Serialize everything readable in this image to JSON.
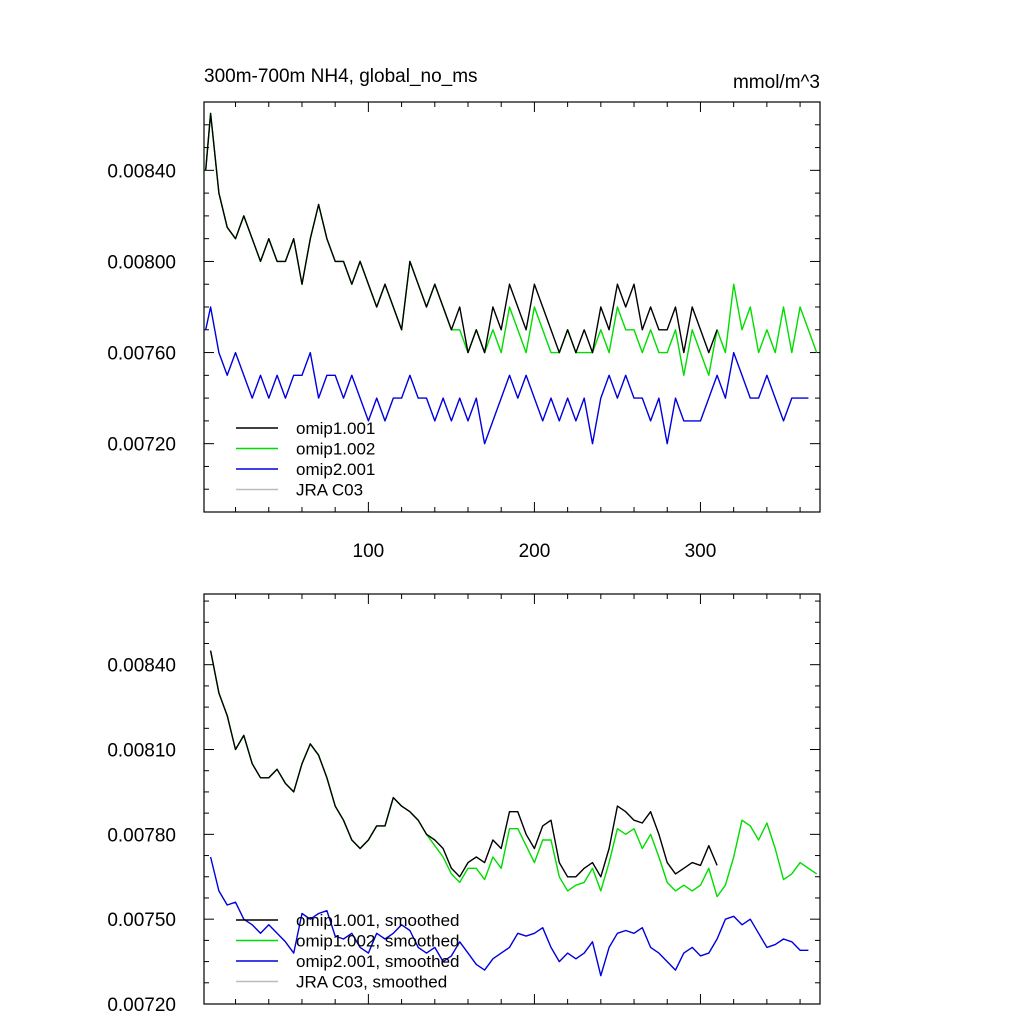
{
  "chart_data": [
    {
      "type": "line",
      "title": "300m-700m NH4, global_no_ms",
      "units": "mmol/m^3",
      "xlim": [
        1,
        372
      ],
      "ylim": [
        0.0069,
        0.0087
      ],
      "xticks": [
        100,
        200,
        300
      ],
      "xtick_labels": [
        "100",
        "200",
        "300"
      ],
      "yticks": [
        0.0072,
        0.0076,
        0.008,
        0.0084
      ],
      "ytick_labels": [
        "0.00720",
        "0.00760",
        "0.00800",
        "0.00840"
      ],
      "legend_position": "bottom-left",
      "colors": [
        "#000000",
        "#00dd00",
        "#0000dd",
        "#bbbbbb"
      ],
      "series": [
        {
          "name": "omip1.001",
          "color": "#000000",
          "x": [
            2,
            5,
            10,
            15,
            20,
            25,
            30,
            35,
            40,
            45,
            50,
            55,
            60,
            65,
            70,
            75,
            80,
            85,
            90,
            95,
            100,
            105,
            110,
            115,
            120,
            125,
            130,
            135,
            140,
            145,
            150,
            155,
            160,
            165,
            170,
            175,
            180,
            185,
            190,
            195,
            200,
            205,
            210,
            215,
            220,
            225,
            230,
            235,
            240,
            245,
            250,
            255,
            260,
            265,
            270,
            275,
            280,
            285,
            290,
            295,
            300,
            305,
            310
          ],
          "y": [
            0.0084,
            0.00865,
            0.0083,
            0.00815,
            0.0081,
            0.0082,
            0.0081,
            0.008,
            0.0081,
            0.008,
            0.008,
            0.0081,
            0.0079,
            0.0081,
            0.00825,
            0.0081,
            0.008,
            0.008,
            0.0079,
            0.008,
            0.0079,
            0.0078,
            0.0079,
            0.0078,
            0.0077,
            0.008,
            0.0079,
            0.0078,
            0.0079,
            0.0078,
            0.0077,
            0.0078,
            0.0076,
            0.0077,
            0.0076,
            0.0078,
            0.0077,
            0.0079,
            0.0078,
            0.0077,
            0.0079,
            0.0078,
            0.0077,
            0.0076,
            0.0077,
            0.0076,
            0.0077,
            0.0076,
            0.0078,
            0.0077,
            0.0079,
            0.0078,
            0.0079,
            0.0077,
            0.0078,
            0.0077,
            0.0077,
            0.0078,
            0.0076,
            0.0078,
            0.0077,
            0.0076,
            0.0077
          ]
        },
        {
          "name": "omip1.002",
          "color": "#00dd00",
          "x": [
            2,
            5,
            10,
            15,
            20,
            25,
            30,
            35,
            40,
            45,
            50,
            55,
            60,
            65,
            70,
            75,
            80,
            85,
            90,
            95,
            100,
            105,
            110,
            115,
            120,
            125,
            130,
            135,
            140,
            145,
            150,
            155,
            160,
            165,
            170,
            175,
            180,
            185,
            190,
            195,
            200,
            205,
            210,
            215,
            220,
            225,
            230,
            235,
            240,
            245,
            250,
            255,
            260,
            265,
            270,
            275,
            280,
            285,
            290,
            295,
            300,
            305,
            310,
            315,
            320,
            325,
            330,
            335,
            340,
            345,
            350,
            355,
            360,
            365,
            370
          ],
          "y": [
            0.0084,
            0.00865,
            0.0083,
            0.00815,
            0.0081,
            0.0082,
            0.0081,
            0.008,
            0.0081,
            0.008,
            0.008,
            0.0081,
            0.0079,
            0.0081,
            0.00825,
            0.0081,
            0.008,
            0.008,
            0.0079,
            0.008,
            0.0079,
            0.0078,
            0.0079,
            0.0078,
            0.0077,
            0.008,
            0.0079,
            0.0078,
            0.0079,
            0.0078,
            0.0077,
            0.0077,
            0.0076,
            0.0077,
            0.0076,
            0.0077,
            0.0076,
            0.0078,
            0.0077,
            0.0076,
            0.0078,
            0.0077,
            0.0076,
            0.0076,
            0.0077,
            0.0076,
            0.0076,
            0.0076,
            0.0077,
            0.0076,
            0.0078,
            0.0077,
            0.0077,
            0.0076,
            0.0077,
            0.0076,
            0.0076,
            0.0077,
            0.0075,
            0.0077,
            0.0076,
            0.0075,
            0.0077,
            0.0076,
            0.0079,
            0.0077,
            0.0078,
            0.0076,
            0.0077,
            0.0076,
            0.0078,
            0.0076,
            0.0078,
            0.0077,
            0.0076
          ]
        },
        {
          "name": "omip2.001",
          "color": "#0000dd",
          "x": [
            2,
            5,
            10,
            15,
            20,
            25,
            30,
            35,
            40,
            45,
            50,
            55,
            60,
            65,
            70,
            75,
            80,
            85,
            90,
            95,
            100,
            105,
            110,
            115,
            120,
            125,
            130,
            135,
            140,
            145,
            150,
            155,
            160,
            165,
            170,
            175,
            180,
            185,
            190,
            195,
            200,
            205,
            210,
            215,
            220,
            225,
            230,
            235,
            240,
            245,
            250,
            255,
            260,
            265,
            270,
            275,
            280,
            285,
            290,
            295,
            300,
            305,
            310,
            315,
            320,
            325,
            330,
            335,
            340,
            345,
            350,
            355,
            360,
            365
          ],
          "y": [
            0.0077,
            0.0078,
            0.0076,
            0.0075,
            0.0076,
            0.0075,
            0.0074,
            0.0075,
            0.0074,
            0.0075,
            0.0074,
            0.0075,
            0.0075,
            0.0076,
            0.0074,
            0.0075,
            0.0075,
            0.0074,
            0.0075,
            0.0074,
            0.0073,
            0.0074,
            0.0073,
            0.0074,
            0.0074,
            0.0075,
            0.0074,
            0.0074,
            0.0073,
            0.0074,
            0.0073,
            0.0074,
            0.0073,
            0.0074,
            0.0072,
            0.0073,
            0.0074,
            0.0075,
            0.0074,
            0.0075,
            0.0074,
            0.0073,
            0.0074,
            0.0073,
            0.0074,
            0.0073,
            0.0074,
            0.0072,
            0.0074,
            0.0075,
            0.0074,
            0.0075,
            0.0074,
            0.0074,
            0.0073,
            0.0074,
            0.0072,
            0.0074,
            0.0073,
            0.0073,
            0.0073,
            0.0074,
            0.0075,
            0.0074,
            0.0076,
            0.0075,
            0.0074,
            0.0074,
            0.0075,
            0.0074,
            0.0073,
            0.0074,
            0.0074,
            0.0074
          ]
        },
        {
          "name": "JRA C03",
          "color": "#bbbbbb",
          "x": [],
          "y": []
        }
      ]
    },
    {
      "type": "line",
      "title": "",
      "xlim": [
        1,
        372
      ],
      "ylim": [
        0.0072,
        0.00865
      ],
      "xticks": [
        100,
        200,
        300
      ],
      "xtick_labels": [
        "",
        "",
        ""
      ],
      "yticks": [
        0.0072,
        0.0075,
        0.0078,
        0.0081,
        0.0084
      ],
      "ytick_labels": [
        "0.00720",
        "0.00750",
        "0.00780",
        "0.00810",
        "0.00840"
      ],
      "legend_position": "bottom-left",
      "colors": [
        "#000000",
        "#00dd00",
        "#0000dd",
        "#bbbbbb"
      ],
      "series": [
        {
          "name": "omip1.001, smoothed",
          "color": "#000000",
          "x": [
            5,
            10,
            15,
            20,
            25,
            30,
            35,
            40,
            45,
            50,
            55,
            60,
            65,
            70,
            75,
            80,
            85,
            90,
            95,
            100,
            105,
            110,
            115,
            120,
            125,
            130,
            135,
            140,
            145,
            150,
            155,
            160,
            165,
            170,
            175,
            180,
            185,
            190,
            195,
            200,
            205,
            210,
            215,
            220,
            225,
            230,
            235,
            240,
            245,
            250,
            255,
            260,
            265,
            270,
            275,
            280,
            285,
            290,
            295,
            300,
            305,
            310
          ],
          "y": [
            0.00845,
            0.0083,
            0.00822,
            0.0081,
            0.00815,
            0.00805,
            0.008,
            0.008,
            0.00803,
            0.00798,
            0.00795,
            0.00805,
            0.00812,
            0.00808,
            0.008,
            0.0079,
            0.00785,
            0.00778,
            0.00775,
            0.00778,
            0.00783,
            0.00783,
            0.00793,
            0.0079,
            0.00788,
            0.00785,
            0.0078,
            0.00778,
            0.00775,
            0.00768,
            0.00765,
            0.0077,
            0.00772,
            0.0077,
            0.00778,
            0.00775,
            0.00788,
            0.00788,
            0.0078,
            0.00775,
            0.00783,
            0.00785,
            0.0077,
            0.00765,
            0.00765,
            0.00768,
            0.0077,
            0.00765,
            0.00775,
            0.0079,
            0.00788,
            0.00785,
            0.00784,
            0.00788,
            0.0078,
            0.0077,
            0.00766,
            0.00768,
            0.0077,
            0.00769,
            0.00776,
            0.00769
          ]
        },
        {
          "name": "omip1.002, smoothed",
          "color": "#00dd00",
          "x": [
            5,
            10,
            15,
            20,
            25,
            30,
            35,
            40,
            45,
            50,
            55,
            60,
            65,
            70,
            75,
            80,
            85,
            90,
            95,
            100,
            105,
            110,
            115,
            120,
            125,
            130,
            135,
            140,
            145,
            150,
            155,
            160,
            165,
            170,
            175,
            180,
            185,
            190,
            195,
            200,
            205,
            210,
            215,
            220,
            225,
            230,
            235,
            240,
            245,
            250,
            255,
            260,
            265,
            270,
            275,
            280,
            285,
            290,
            295,
            300,
            305,
            310,
            315,
            320,
            325,
            330,
            335,
            340,
            345,
            350,
            355,
            360,
            365,
            370
          ],
          "y": [
            0.00845,
            0.0083,
            0.00822,
            0.0081,
            0.00815,
            0.00805,
            0.008,
            0.008,
            0.00803,
            0.00798,
            0.00795,
            0.00805,
            0.00812,
            0.00808,
            0.008,
            0.0079,
            0.00785,
            0.00778,
            0.00775,
            0.00778,
            0.00783,
            0.00783,
            0.00793,
            0.0079,
            0.00788,
            0.00785,
            0.0078,
            0.00776,
            0.00772,
            0.00766,
            0.00763,
            0.00768,
            0.00768,
            0.00764,
            0.00772,
            0.00768,
            0.00782,
            0.00782,
            0.00776,
            0.0077,
            0.00778,
            0.00778,
            0.00765,
            0.0076,
            0.00762,
            0.00763,
            0.00768,
            0.0076,
            0.0077,
            0.00782,
            0.0078,
            0.00782,
            0.00775,
            0.0078,
            0.00772,
            0.00763,
            0.0076,
            0.00762,
            0.0076,
            0.00762,
            0.00768,
            0.00758,
            0.00762,
            0.00772,
            0.00785,
            0.00783,
            0.00778,
            0.00784,
            0.00775,
            0.00764,
            0.00766,
            0.0077,
            0.00768,
            0.00766
          ]
        },
        {
          "name": "omip2.001, smoothed",
          "color": "#0000dd",
          "x": [
            5,
            10,
            15,
            20,
            25,
            30,
            35,
            40,
            45,
            50,
            55,
            60,
            65,
            70,
            75,
            80,
            85,
            90,
            95,
            100,
            105,
            110,
            115,
            120,
            125,
            130,
            135,
            140,
            145,
            150,
            155,
            160,
            165,
            170,
            175,
            180,
            185,
            190,
            195,
            200,
            205,
            210,
            215,
            220,
            225,
            230,
            235,
            240,
            245,
            250,
            255,
            260,
            265,
            270,
            275,
            280,
            285,
            290,
            295,
            300,
            305,
            310,
            315,
            320,
            325,
            330,
            335,
            340,
            345,
            350,
            355,
            360,
            365
          ],
          "y": [
            0.00772,
            0.0076,
            0.00755,
            0.00756,
            0.0075,
            0.00748,
            0.00745,
            0.00748,
            0.00745,
            0.00742,
            0.00738,
            0.00752,
            0.0075,
            0.00752,
            0.00753,
            0.00744,
            0.00743,
            0.00745,
            0.0074,
            0.00738,
            0.00745,
            0.00743,
            0.00745,
            0.00748,
            0.00746,
            0.0074,
            0.00738,
            0.0074,
            0.00735,
            0.00737,
            0.00742,
            0.00738,
            0.00734,
            0.00732,
            0.00736,
            0.00738,
            0.0074,
            0.00745,
            0.00744,
            0.00745,
            0.00747,
            0.0074,
            0.00735,
            0.00738,
            0.00736,
            0.00738,
            0.00742,
            0.0073,
            0.0074,
            0.00745,
            0.00746,
            0.00745,
            0.00747,
            0.0074,
            0.00738,
            0.00735,
            0.00732,
            0.00738,
            0.0074,
            0.00737,
            0.00738,
            0.00743,
            0.0075,
            0.00751,
            0.00748,
            0.0075,
            0.00745,
            0.0074,
            0.00741,
            0.00743,
            0.00742,
            0.00739,
            0.00739
          ]
        },
        {
          "name": "JRA C03, smoothed",
          "color": "#bbbbbb",
          "x": [],
          "y": []
        }
      ]
    }
  ]
}
